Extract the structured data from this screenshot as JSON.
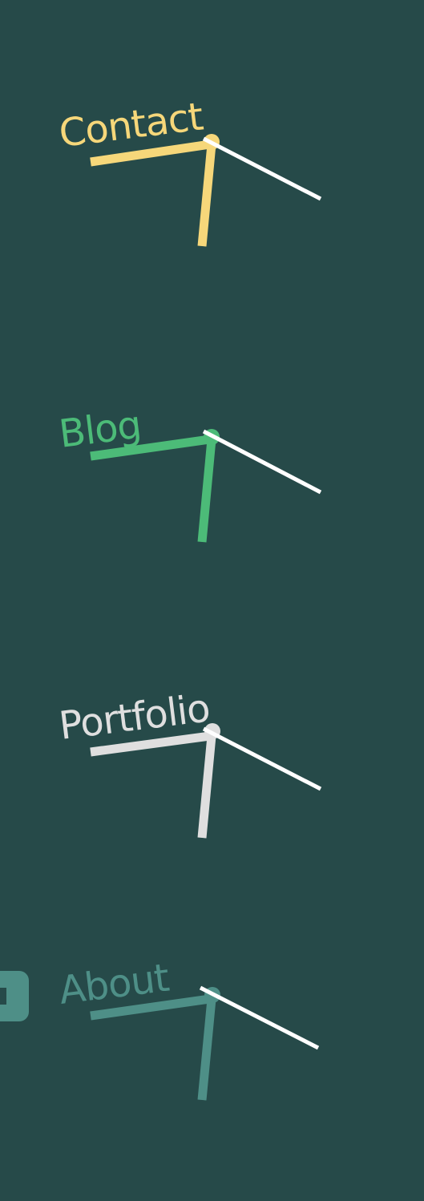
{
  "colors": {
    "background": "#264a49",
    "hand": "#ffffff",
    "contact": "#f6d77a",
    "blog": "#4cbb78",
    "portfolio": "#dfdfdf",
    "about": "#4e8f87"
  },
  "nav": {
    "items": [
      {
        "id": "contact",
        "label": "Contact",
        "color_key": "contact",
        "state": "default"
      },
      {
        "id": "blog",
        "label": "Blog",
        "color_key": "blog",
        "state": "default"
      },
      {
        "id": "portfolio",
        "label": "Portfolio",
        "color_key": "portfolio",
        "state": "default"
      },
      {
        "id": "about",
        "label": "About",
        "color_key": "about",
        "state": "active"
      }
    ]
  },
  "edge_tab": {
    "color_key": "about",
    "icon": "side-tab-icon"
  }
}
